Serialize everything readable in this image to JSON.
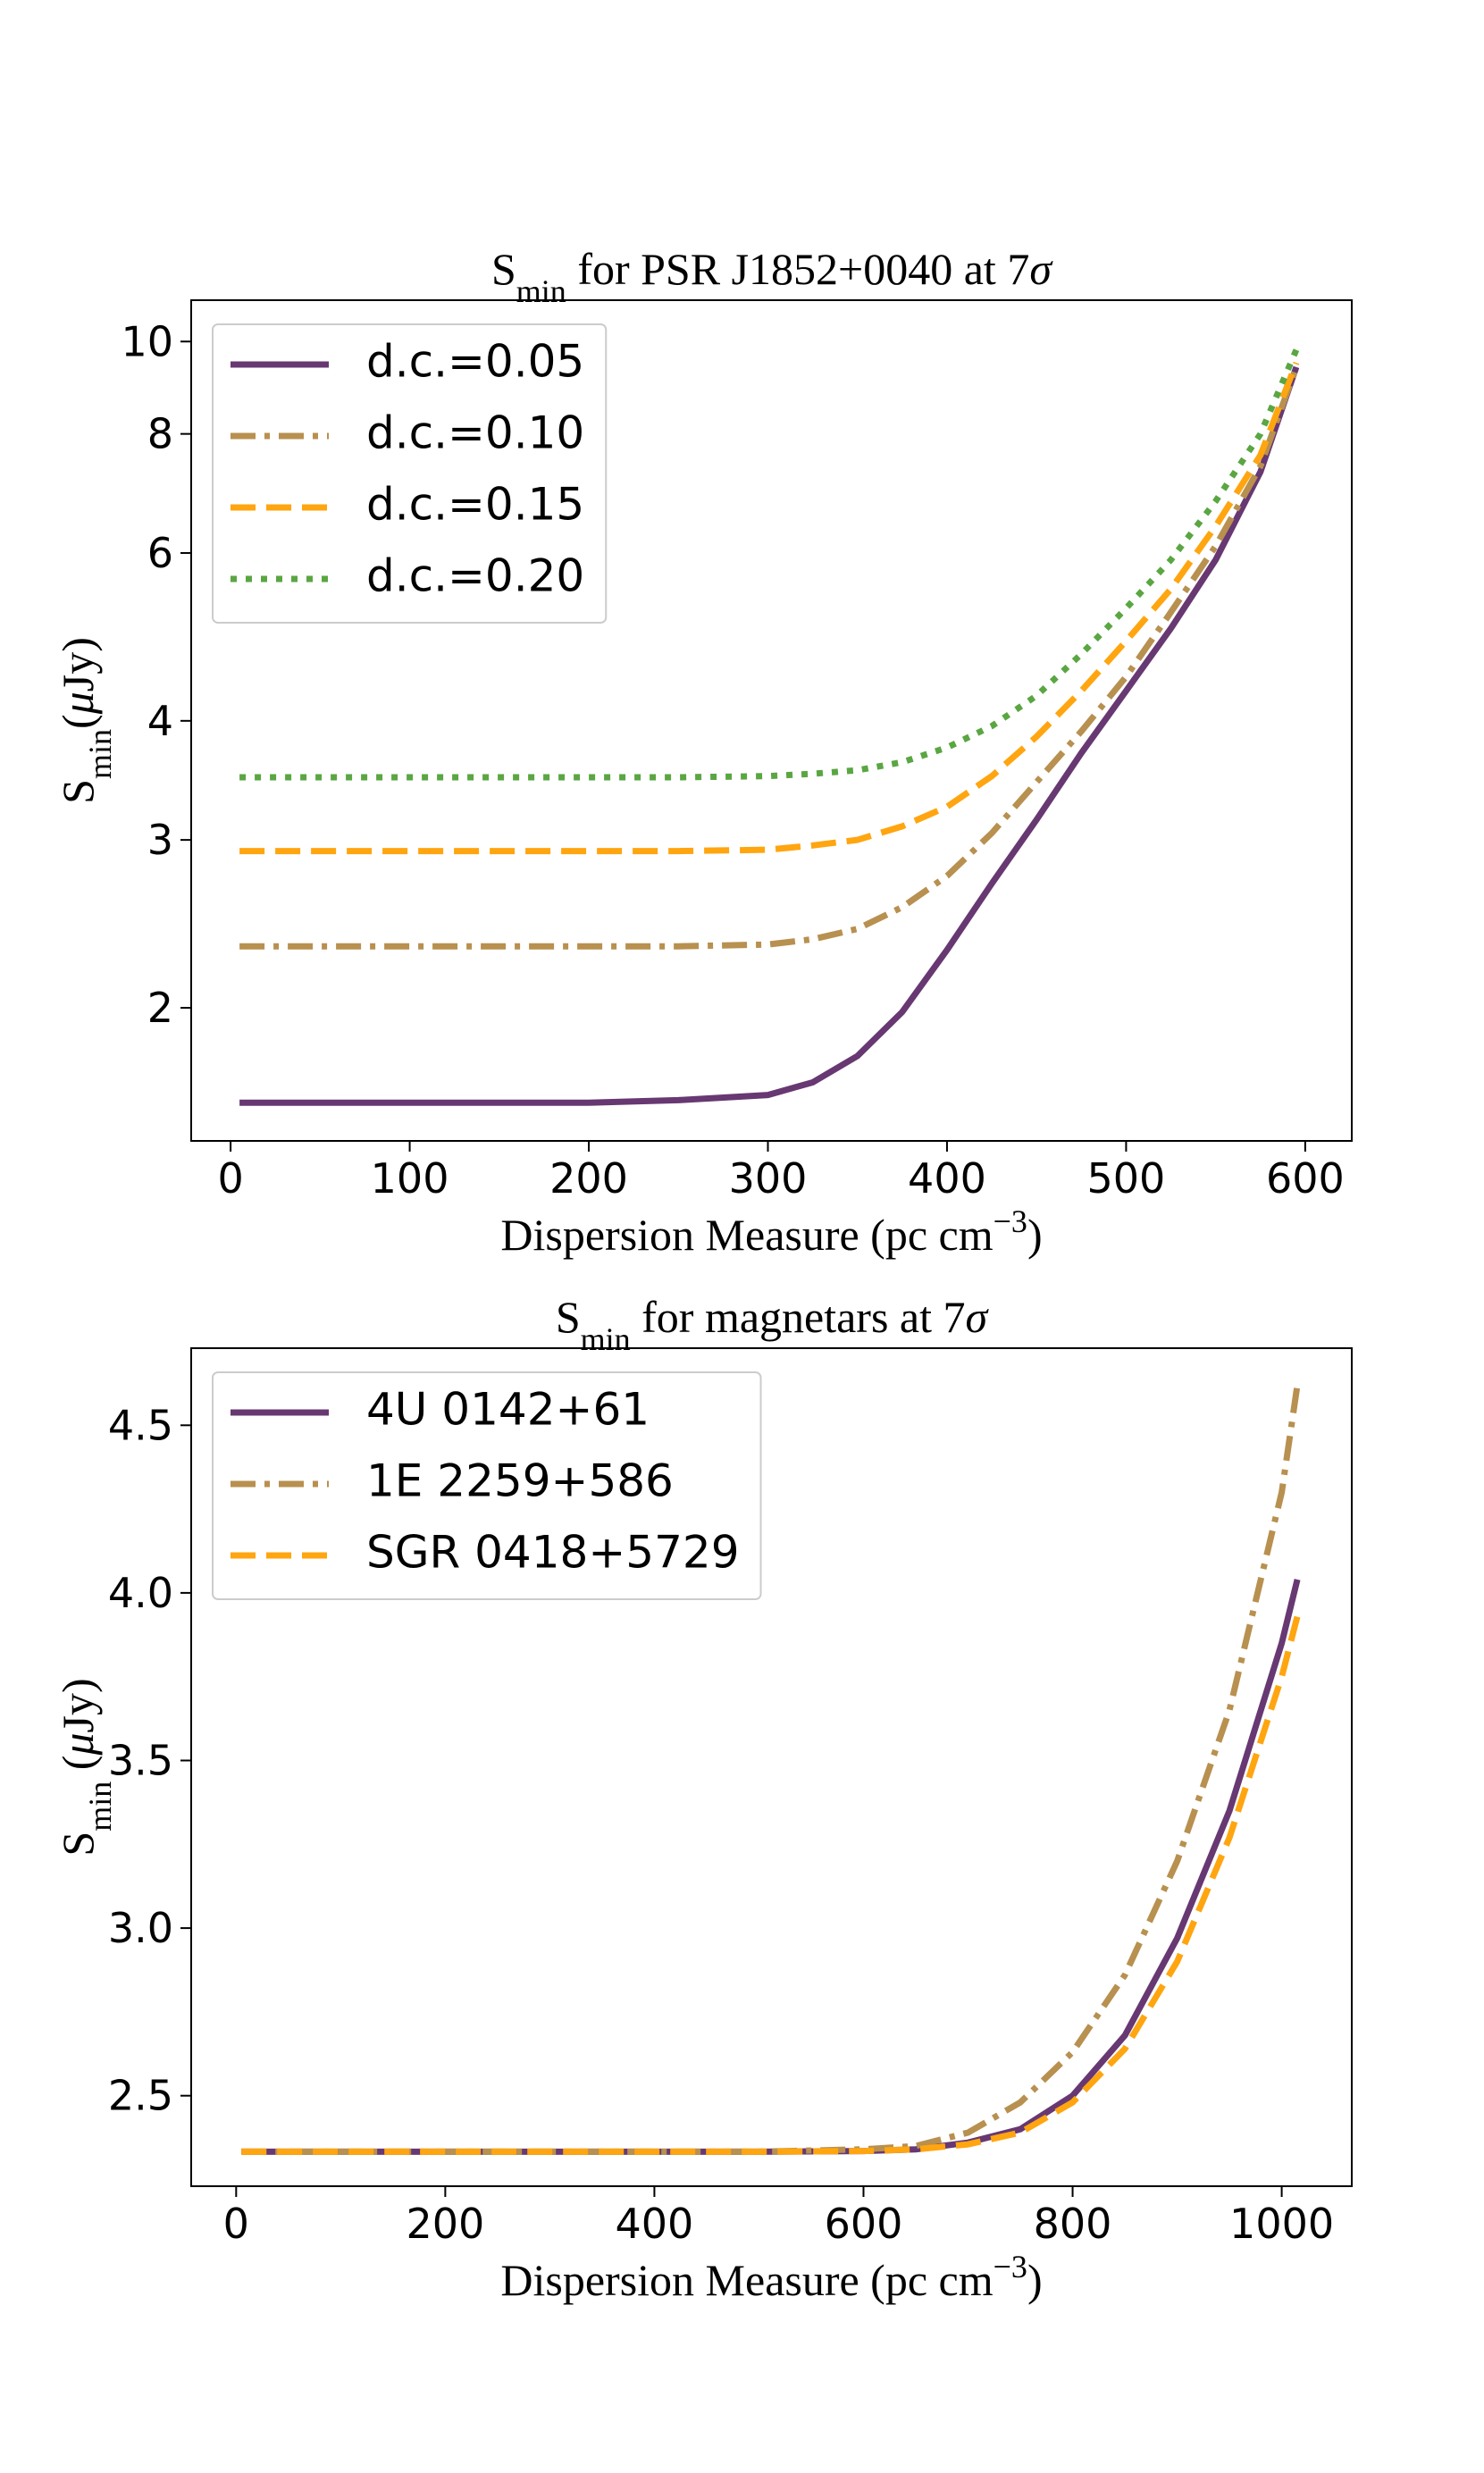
{
  "chart_data": [
    {
      "type": "line",
      "title": [
        "S",
        "min",
        " for PSR J1852+0040 at 7",
        "σ"
      ],
      "xlabel": [
        "Dispersion Measure (pc cm",
        "−3",
        ")"
      ],
      "ylabel": [
        "S",
        "min",
        "(",
        "μ",
        "Jy)"
      ],
      "log_y": true,
      "xlim": [
        -22,
        626
      ],
      "ylim": [
        1.45,
        11.05
      ],
      "xticks": [
        0,
        100,
        200,
        300,
        400,
        500,
        600
      ],
      "yticks": [
        2,
        3,
        4,
        6,
        8,
        10
      ],
      "legend": "upper left",
      "x": [
        5,
        50,
        100,
        150,
        200,
        250,
        300,
        325,
        350,
        375,
        400,
        425,
        450,
        475,
        500,
        525,
        550,
        575,
        595
      ],
      "series": [
        {
          "name": "d.c.=0.05",
          "color": "#673872",
          "dash": "solid",
          "values": [
            1.59,
            1.59,
            1.59,
            1.59,
            1.59,
            1.6,
            1.62,
            1.67,
            1.78,
            1.98,
            2.3,
            2.7,
            3.15,
            3.7,
            4.3,
            5.0,
            5.9,
            7.3,
            9.4
          ]
        },
        {
          "name": "d.c.=0.10",
          "color": "#b8904f",
          "dash": "dashdot",
          "values": [
            2.32,
            2.32,
            2.32,
            2.32,
            2.32,
            2.32,
            2.33,
            2.36,
            2.42,
            2.55,
            2.75,
            3.05,
            3.45,
            3.9,
            4.45,
            5.2,
            6.1,
            7.4,
            9.4
          ]
        },
        {
          "name": "d.c.=0.15",
          "color": "#ffa510",
          "dash": "dashed",
          "values": [
            2.92,
            2.92,
            2.92,
            2.92,
            2.92,
            2.92,
            2.93,
            2.96,
            3.0,
            3.1,
            3.25,
            3.5,
            3.85,
            4.3,
            4.85,
            5.5,
            6.4,
            7.6,
            9.5
          ]
        },
        {
          "name": "d.c.=0.20",
          "color": "#5aa642",
          "dash": "dotted",
          "values": [
            3.49,
            3.49,
            3.49,
            3.49,
            3.49,
            3.49,
            3.5,
            3.52,
            3.55,
            3.62,
            3.75,
            3.95,
            4.25,
            4.7,
            5.25,
            5.9,
            6.8,
            8.0,
            9.8
          ]
        }
      ]
    },
    {
      "type": "line",
      "title": [
        "S",
        "min",
        " for magnetars at 7",
        "σ"
      ],
      "xlabel": [
        "Dispersion Measure (pc cm",
        "−3",
        ")"
      ],
      "ylabel": [
        "S",
        "min",
        " (",
        "μ",
        "Jy)"
      ],
      "log_y": false,
      "xlim": [
        -43,
        1067
      ],
      "ylim": [
        2.23,
        4.73
      ],
      "xticks": [
        0,
        200,
        400,
        600,
        800,
        1000
      ],
      "yticks": [
        2.5,
        3.0,
        3.5,
        4.0,
        4.5
      ],
      "yticks_labels": [
        "2.5",
        "3.0",
        "3.5",
        "4.0",
        "4.5"
      ],
      "legend": "upper left",
      "x": [
        5,
        100,
        200,
        300,
        400,
        500,
        600,
        650,
        700,
        750,
        800,
        850,
        900,
        950,
        1000,
        1015
      ],
      "series": [
        {
          "name": "4U 0142+61",
          "color": "#673872",
          "dash": "solid",
          "values": [
            2.333,
            2.333,
            2.333,
            2.333,
            2.333,
            2.333,
            2.335,
            2.34,
            2.36,
            2.4,
            2.5,
            2.68,
            2.97,
            3.35,
            3.85,
            4.04
          ]
        },
        {
          "name": "1E 2259+586",
          "color": "#b8904f",
          "dash": "dashdot",
          "values": [
            2.333,
            2.333,
            2.333,
            2.333,
            2.333,
            2.333,
            2.34,
            2.35,
            2.39,
            2.48,
            2.63,
            2.86,
            3.2,
            3.65,
            4.3,
            4.62
          ]
        },
        {
          "name": "SGR 0418+5729",
          "color": "#ffa510",
          "dash": "dashed",
          "values": [
            2.333,
            2.333,
            2.333,
            2.333,
            2.333,
            2.333,
            2.335,
            2.34,
            2.355,
            2.39,
            2.48,
            2.64,
            2.9,
            3.27,
            3.75,
            3.93
          ]
        }
      ]
    }
  ]
}
